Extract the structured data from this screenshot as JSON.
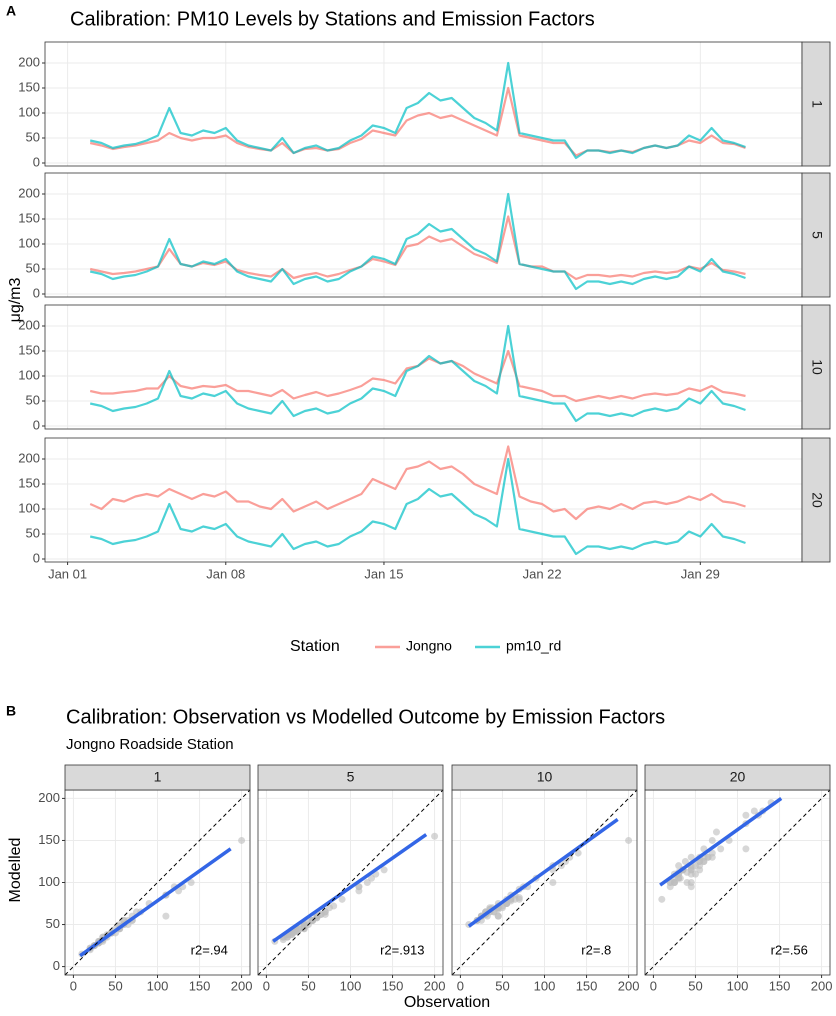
{
  "chart_data": [
    {
      "type": "line",
      "tag": "A",
      "title": "Calibration: PM10 Levels by Stations and Emission Factors",
      "ylabel": "μg/m3",
      "x": [
        2,
        2.5,
        3,
        3.5,
        4,
        4.5,
        5,
        5.5,
        6,
        6.5,
        7,
        7.5,
        8,
        8.5,
        9,
        9.5,
        10,
        10.5,
        11,
        11.5,
        12,
        12.5,
        13,
        13.5,
        14,
        14.5,
        15,
        15.5,
        16,
        16.5,
        17,
        17.5,
        18,
        18.5,
        19,
        19.5,
        20,
        20.5,
        21,
        21.5,
        22,
        22.5,
        23,
        23.5,
        24,
        24.5,
        25,
        25.5,
        26,
        26.5,
        27,
        27.5,
        28,
        28.5,
        29,
        29.5,
        30,
        30.5,
        31
      ],
      "xlim": [
        0,
        33.5
      ],
      "xticks": [
        {
          "value": 1,
          "label": "Jan 01"
        },
        {
          "value": 8,
          "label": "Jan 08"
        },
        {
          "value": 15,
          "label": "Jan 15"
        },
        {
          "value": 22,
          "label": "Jan 22"
        },
        {
          "value": 29,
          "label": "Jan 29"
        }
      ],
      "ylim": [
        -6,
        242
      ],
      "yticks": [
        0,
        50,
        100,
        150,
        200
      ],
      "grid": true,
      "facets": [
        "1",
        "5",
        "10",
        "20"
      ],
      "legend_title": "Station",
      "series": [
        {
          "name": "Jongno",
          "color": "#f8766d",
          "values": [
            [
              40,
              35,
              28,
              32,
              35,
              40,
              45,
              60,
              50,
              45,
              50,
              50,
              55,
              40,
              32,
              28,
              25,
              40,
              20,
              28,
              30,
              25,
              28,
              40,
              48,
              65,
              60,
              55,
              85,
              95,
              100,
              90,
              95,
              85,
              75,
              65,
              55,
              150,
              55,
              50,
              45,
              40,
              40,
              15,
              25,
              25,
              22,
              25,
              22,
              30,
              35,
              30,
              35,
              45,
              40,
              55,
              40,
              38,
              30
            ],
            [
              50,
              45,
              40,
              42,
              45,
              50,
              55,
              90,
              60,
              55,
              62,
              58,
              65,
              48,
              42,
              38,
              35,
              50,
              32,
              38,
              42,
              35,
              40,
              48,
              55,
              70,
              65,
              58,
              95,
              100,
              115,
              105,
              110,
              95,
              80,
              72,
              62,
              155,
              60,
              55,
              55,
              45,
              45,
              30,
              38,
              38,
              35,
              38,
              35,
              42,
              45,
              42,
              45,
              55,
              50,
              62,
              48,
              45,
              40
            ],
            [
              70,
              65,
              65,
              68,
              70,
              75,
              75,
              100,
              80,
              75,
              80,
              78,
              82,
              70,
              70,
              65,
              60,
              72,
              55,
              62,
              68,
              60,
              65,
              72,
              80,
              95,
              92,
              85,
              115,
              120,
              135,
              125,
              130,
              120,
              105,
              95,
              85,
              150,
              80,
              75,
              70,
              60,
              60,
              50,
              55,
              60,
              55,
              60,
              55,
              62,
              65,
              62,
              65,
              75,
              70,
              80,
              68,
              65,
              60
            ],
            [
              110,
              100,
              120,
              115,
              125,
              130,
              125,
              140,
              130,
              120,
              130,
              125,
              135,
              115,
              115,
              105,
              100,
              120,
              95,
              105,
              115,
              100,
              110,
              120,
              130,
              160,
              150,
              140,
              180,
              185,
              195,
              180,
              185,
              170,
              150,
              140,
              130,
              225,
              125,
              115,
              110,
              95,
              100,
              80,
              100,
              105,
              100,
              110,
              100,
              112,
              115,
              110,
              115,
              125,
              118,
              130,
              115,
              112,
              105
            ]
          ]
        },
        {
          "name": "pm10_rd",
          "color": "#00bfc4",
          "values": [
            45,
            40,
            30,
            35,
            38,
            45,
            55,
            110,
            60,
            55,
            65,
            60,
            70,
            45,
            35,
            30,
            25,
            50,
            20,
            30,
            35,
            25,
            30,
            45,
            55,
            75,
            70,
            60,
            110,
            120,
            140,
            125,
            130,
            110,
            90,
            80,
            65,
            200,
            60,
            55,
            50,
            45,
            45,
            10,
            25,
            25,
            20,
            25,
            20,
            30,
            35,
            30,
            35,
            55,
            45,
            70,
            45,
            40,
            32
          ]
        }
      ]
    },
    {
      "type": "scatter",
      "tag": "B",
      "title": "Calibration: Observation vs Modelled Outcome by Emission Factors",
      "subtitle": "Jongno Roadside Station",
      "xlabel": "Observation",
      "ylabel": "Modelled",
      "facets": [
        "1",
        "5",
        "10",
        "20"
      ],
      "xlim": [
        -10,
        210
      ],
      "ylim": [
        -10,
        210
      ],
      "xticks": [
        0,
        50,
        100,
        150,
        200
      ],
      "yticks": [
        0,
        50,
        100,
        150,
        200
      ],
      "grid": true,
      "point_color": "#bdbdbd",
      "fit_color": "#3366e6",
      "fits": [
        {
          "x": [
            8,
            187
          ],
          "y": [
            13,
            140
          ]
        },
        {
          "x": [
            8,
            190
          ],
          "y": [
            30,
            157
          ]
        },
        {
          "x": [
            10,
            187
          ],
          "y": [
            48,
            175
          ]
        },
        {
          "x": [
            8,
            152
          ],
          "y": [
            97,
            200
          ]
        }
      ],
      "annotations": [
        "r2=.94",
        "r2=.913",
        "r2=.8",
        "r2=.56"
      ]
    }
  ]
}
